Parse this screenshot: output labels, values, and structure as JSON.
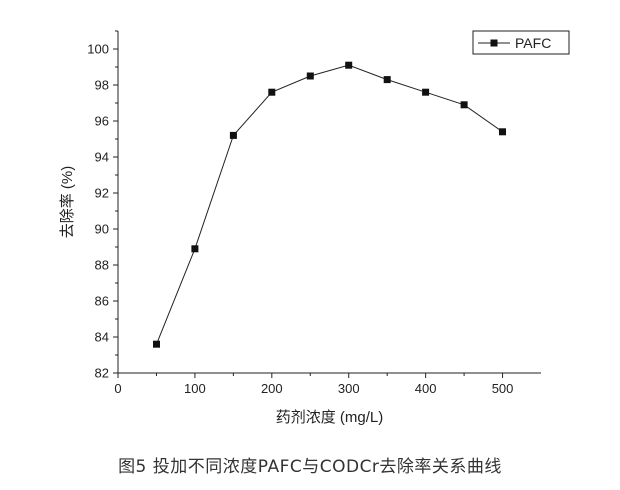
{
  "chart_data": {
    "type": "line",
    "x": [
      50,
      100,
      150,
      200,
      250,
      300,
      350,
      400,
      450,
      500
    ],
    "series": [
      {
        "name": "PAFC",
        "values": [
          83.6,
          88.9,
          95.2,
          97.6,
          98.5,
          99.1,
          98.3,
          97.6,
          96.9,
          95.4
        ]
      }
    ],
    "xlabel": "药剂浓度 (mg/L)",
    "ylabel": "去除率 (%)",
    "xlim": [
      0,
      550
    ],
    "ylim": [
      82,
      101
    ],
    "xticks": [
      "0",
      "100",
      "200",
      "300",
      "400",
      "500"
    ],
    "yticks": [
      "82",
      "84",
      "86",
      "88",
      "90",
      "92",
      "94",
      "96",
      "98",
      "100"
    ],
    "legend": {
      "position": "top-right",
      "labels": [
        "PAFC"
      ]
    }
  },
  "caption": "图5  投加不同浓度PAFC与CODCr去除率关系曲线",
  "colors": {
    "line": "#222222",
    "marker": "#111111",
    "axis": "#222222"
  }
}
